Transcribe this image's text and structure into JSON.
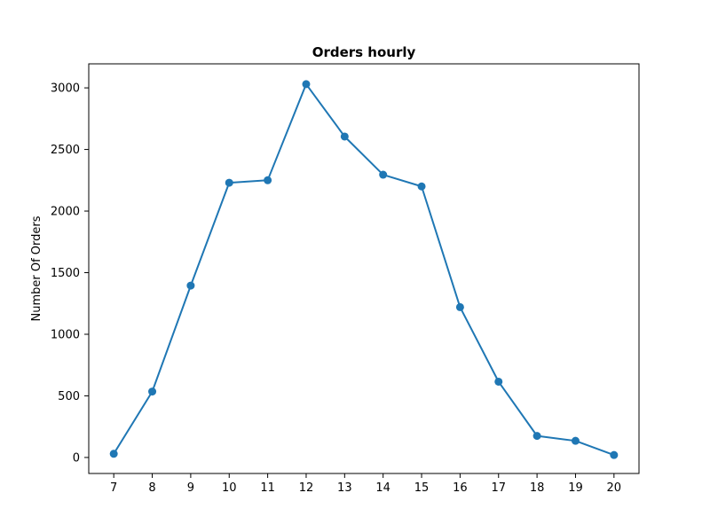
{
  "chart_data": {
    "type": "line",
    "title": "Orders hourly",
    "xlabel": "",
    "ylabel": "Number Of Orders",
    "x": [
      7,
      8,
      9,
      10,
      11,
      12,
      13,
      14,
      15,
      16,
      17,
      18,
      19,
      20
    ],
    "xticks": [
      "7",
      "8",
      "9",
      "10",
      "11",
      "12",
      "13",
      "14",
      "15",
      "16",
      "17",
      "18",
      "19",
      "20"
    ],
    "xlim": [
      6.35,
      20.65
    ],
    "ylim": [
      -130,
      3195
    ],
    "yticks": [
      0,
      500,
      1000,
      1500,
      2000,
      2500,
      3000
    ],
    "series": [
      {
        "color": "#1f77b4",
        "marker": "circle",
        "values": [
          30,
          535,
          1395,
          2230,
          2250,
          3030,
          2605,
          2295,
          2200,
          1220,
          615,
          175,
          135,
          20
        ]
      }
    ],
    "grid": false,
    "legend": "none"
  }
}
